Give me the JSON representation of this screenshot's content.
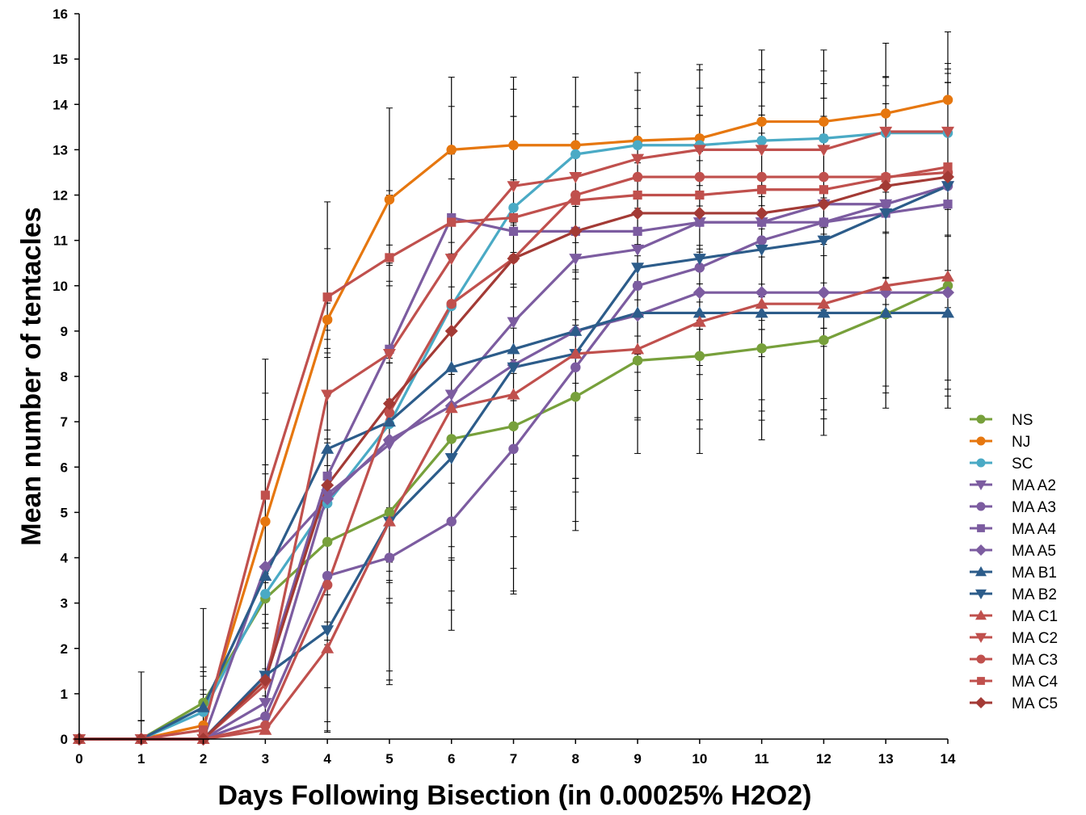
{
  "chart_data": {
    "type": "line",
    "title": "",
    "xlabel": "Days Following Bisection (in 0.00025% H2O2)",
    "ylabel": "Mean number of tentacles",
    "xlim": [
      0,
      14
    ],
    "ylim": [
      0,
      16
    ],
    "x_ticks": [
      "0",
      "1",
      "2",
      "3",
      "4",
      "5",
      "6",
      "7",
      "8",
      "9",
      "10",
      "11",
      "12",
      "13",
      "14"
    ],
    "y_ticks": [
      "0",
      "1",
      "2",
      "3",
      "4",
      "5",
      "6",
      "7",
      "8",
      "9",
      "10",
      "11",
      "12",
      "13",
      "14",
      "15",
      "16"
    ],
    "grid": false,
    "legend_position": "right",
    "x": [
      0,
      1,
      2,
      3,
      4,
      5,
      6,
      7,
      8,
      9,
      10,
      11,
      12,
      13,
      14
    ],
    "series": [
      {
        "name": "NS",
        "color": "#77a03b",
        "marker": "circle",
        "values": [
          0,
          0,
          0.8,
          3.1,
          4.35,
          5.0,
          6.62,
          6.9,
          7.55,
          8.35,
          8.45,
          8.62,
          8.8,
          9.37,
          10.0
        ]
      },
      {
        "name": "NJ",
        "color": "#e6770f",
        "marker": "circle",
        "values": [
          0,
          0,
          0.3,
          4.8,
          9.25,
          11.9,
          13.0,
          13.1,
          13.1,
          13.2,
          13.25,
          13.62,
          13.62,
          13.8,
          14.1
        ]
      },
      {
        "name": "SC",
        "color": "#4aaac5",
        "marker": "circle",
        "values": [
          0,
          0,
          0.6,
          3.2,
          5.2,
          6.95,
          9.55,
          11.72,
          12.9,
          13.1,
          13.1,
          13.2,
          13.25,
          13.37,
          13.37
        ]
      },
      {
        "name": "MA A2",
        "color": "#7c5ca0",
        "marker": "triangle-down",
        "values": [
          0,
          0,
          0,
          0.8,
          5.4,
          6.5,
          7.6,
          9.2,
          10.6,
          10.8,
          11.4,
          11.4,
          11.8,
          11.8,
          12.2
        ]
      },
      {
        "name": "MA A3",
        "color": "#7c5ca0",
        "marker": "circle",
        "values": [
          0,
          0,
          0,
          0.5,
          3.6,
          4.0,
          4.8,
          6.4,
          8.2,
          10.0,
          10.4,
          11.0,
          11.4,
          11.8,
          12.2
        ]
      },
      {
        "name": "MA A4",
        "color": "#7c5ca0",
        "marker": "square",
        "values": [
          0,
          0,
          0,
          1.4,
          5.8,
          8.6,
          11.5,
          11.2,
          11.2,
          11.2,
          11.4,
          11.4,
          11.4,
          11.6,
          11.8
        ]
      },
      {
        "name": "MA A5",
        "color": "#7c5ca0",
        "marker": "diamond",
        "values": [
          0,
          0,
          0,
          3.8,
          5.3,
          6.6,
          7.35,
          8.25,
          9.0,
          9.35,
          9.85,
          9.85,
          9.85,
          9.85,
          9.85
        ]
      },
      {
        "name": "MA B1",
        "color": "#2c5c8a",
        "marker": "triangle-up",
        "values": [
          0,
          0,
          0.7,
          3.6,
          6.4,
          7.0,
          8.2,
          8.6,
          9.0,
          9.4,
          9.4,
          9.4,
          9.4,
          9.4,
          9.4
        ]
      },
      {
        "name": "MA B2",
        "color": "#2c5c8a",
        "marker": "triangle-down",
        "values": [
          0,
          0,
          0,
          1.4,
          2.4,
          4.8,
          6.2,
          8.2,
          8.5,
          10.4,
          10.6,
          10.8,
          11.0,
          11.6,
          12.2
        ]
      },
      {
        "name": "MA C1",
        "color": "#c0504d",
        "marker": "triangle-up",
        "values": [
          0,
          0,
          0,
          0.2,
          2.0,
          4.8,
          7.3,
          7.6,
          8.5,
          8.6,
          9.2,
          9.6,
          9.6,
          10.0,
          10.2
        ]
      },
      {
        "name": "MA C2",
        "color": "#c0504d",
        "marker": "triangle-down",
        "values": [
          0,
          0,
          0,
          1.2,
          7.6,
          8.5,
          10.6,
          12.2,
          12.4,
          12.8,
          13.0,
          13.0,
          13.0,
          13.4,
          13.4
        ]
      },
      {
        "name": "MA C3",
        "color": "#c0504d",
        "marker": "circle",
        "values": [
          0,
          0,
          0,
          0.3,
          3.4,
          7.2,
          9.6,
          10.6,
          12.0,
          12.4,
          12.4,
          12.4,
          12.4,
          12.4,
          12.5
        ]
      },
      {
        "name": "MA C4",
        "color": "#c0504d",
        "marker": "square",
        "values": [
          0,
          0,
          0.2,
          5.38,
          9.75,
          10.62,
          11.4,
          11.5,
          11.88,
          12.0,
          12.0,
          12.12,
          12.12,
          12.38,
          12.62
        ]
      },
      {
        "name": "MA C5",
        "color": "#a33a35",
        "marker": "diamond",
        "values": [
          0,
          0,
          0,
          1.3,
          5.6,
          7.4,
          9.0,
          10.6,
          11.2,
          11.6,
          11.6,
          11.6,
          11.8,
          12.2,
          12.4
        ]
      }
    ],
    "error_bars": {
      "lower": [
        0,
        0,
        0.02,
        0.2,
        0.15,
        1.2,
        2.4,
        3.2,
        4.6,
        6.3,
        6.3,
        6.6,
        6.7,
        7.3,
        7.3
      ],
      "upper": [
        0,
        1.48,
        2.88,
        8.38,
        11.85,
        13.92,
        14.6,
        14.6,
        14.6,
        14.7,
        14.88,
        15.2,
        15.2,
        15.35,
        15.6
      ]
    }
  }
}
